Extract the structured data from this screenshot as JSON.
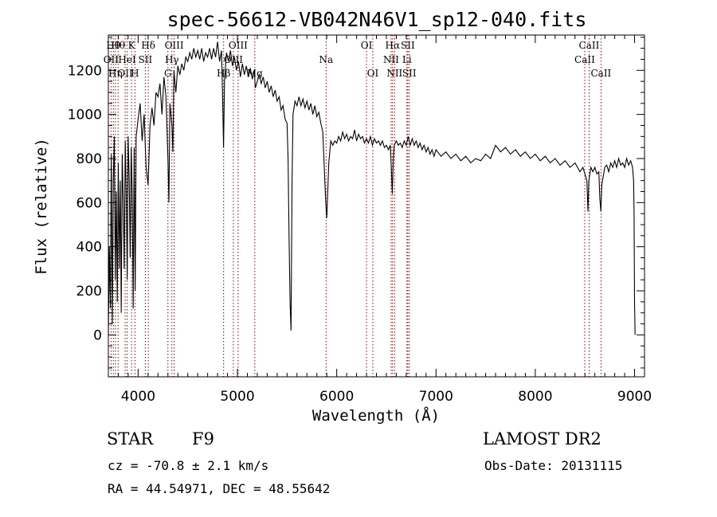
{
  "chart_data": {
    "type": "line",
    "title": "spec-56612-VB042N46V1_sp12-040.fits",
    "xlabel": "Wavelength (Å)",
    "ylabel": "Flux (relative)",
    "xlim": [
      3700,
      9100
    ],
    "ylim": [
      -190,
      1360
    ],
    "xticks": [
      4000,
      5000,
      6000,
      7000,
      8000,
      9000
    ],
    "yticks": [
      0,
      200,
      400,
      600,
      800,
      1000,
      1200
    ],
    "grid": false,
    "series": [
      {
        "color": "#000000",
        "points": [
          [
            3700,
            0
          ],
          [
            3710,
            400
          ],
          [
            3720,
            120
          ],
          [
            3730,
            820
          ],
          [
            3740,
            50
          ],
          [
            3750,
            700
          ],
          [
            3760,
            900
          ],
          [
            3770,
            250
          ],
          [
            3780,
            650
          ],
          [
            3790,
            150
          ],
          [
            3800,
            780
          ],
          [
            3810,
            300
          ],
          [
            3820,
            700
          ],
          [
            3830,
            100
          ],
          [
            3840,
            820
          ],
          [
            3850,
            600
          ],
          [
            3860,
            300
          ],
          [
            3870,
            880
          ],
          [
            3880,
            650
          ],
          [
            3890,
            250
          ],
          [
            3900,
            900
          ],
          [
            3910,
            700
          ],
          [
            3920,
            350
          ],
          [
            3930,
            850
          ],
          [
            3940,
            650
          ],
          [
            3950,
            120
          ],
          [
            3960,
            850
          ],
          [
            3970,
            200
          ],
          [
            3980,
            900
          ],
          [
            4000,
            980
          ],
          [
            4020,
            1050
          ],
          [
            4040,
            880
          ],
          [
            4060,
            1000
          ],
          [
            4080,
            760
          ],
          [
            4100,
            680
          ],
          [
            4120,
            950
          ],
          [
            4140,
            1030
          ],
          [
            4160,
            950
          ],
          [
            4180,
            1100
          ],
          [
            4200,
            1080
          ],
          [
            4220,
            1140
          ],
          [
            4240,
            1000
          ],
          [
            4260,
            1170
          ],
          [
            4280,
            1080
          ],
          [
            4300,
            800
          ],
          [
            4310,
            600
          ],
          [
            4320,
            1050
          ],
          [
            4340,
            950
          ],
          [
            4350,
            830
          ],
          [
            4360,
            1200
          ],
          [
            4380,
            1100
          ],
          [
            4400,
            1220
          ],
          [
            4420,
            1180
          ],
          [
            4440,
            1230
          ],
          [
            4460,
            1200
          ],
          [
            4480,
            1260
          ],
          [
            4500,
            1240
          ],
          [
            4520,
            1280
          ],
          [
            4540,
            1250
          ],
          [
            4560,
            1300
          ],
          [
            4580,
            1260
          ],
          [
            4600,
            1290
          ],
          [
            4620,
            1250
          ],
          [
            4640,
            1300
          ],
          [
            4660,
            1240
          ],
          [
            4680,
            1280
          ],
          [
            4700,
            1260
          ],
          [
            4720,
            1300
          ],
          [
            4740,
            1250
          ],
          [
            4760,
            1300
          ],
          [
            4780,
            1260
          ],
          [
            4800,
            1330
          ],
          [
            4820,
            1240
          ],
          [
            4840,
            1290
          ],
          [
            4850,
            1100
          ],
          [
            4860,
            850
          ],
          [
            4870,
            1150
          ],
          [
            4890,
            1280
          ],
          [
            4910,
            1240
          ],
          [
            4930,
            1290
          ],
          [
            4950,
            1220
          ],
          [
            4970,
            1260
          ],
          [
            4990,
            1200
          ],
          [
            5010,
            1240
          ],
          [
            5030,
            1170
          ],
          [
            5050,
            1230
          ],
          [
            5070,
            1180
          ],
          [
            5090,
            1220
          ],
          [
            5110,
            1170
          ],
          [
            5130,
            1210
          ],
          [
            5150,
            1160
          ],
          [
            5170,
            1200
          ],
          [
            5180,
            1120
          ],
          [
            5200,
            1150
          ],
          [
            5220,
            1180
          ],
          [
            5240,
            1140
          ],
          [
            5260,
            1170
          ],
          [
            5280,
            1120
          ],
          [
            5300,
            1150
          ],
          [
            5320,
            1100
          ],
          [
            5340,
            1130
          ],
          [
            5360,
            1080
          ],
          [
            5380,
            1110
          ],
          [
            5400,
            1060
          ],
          [
            5420,
            1080
          ],
          [
            5440,
            1020
          ],
          [
            5460,
            1040
          ],
          [
            5480,
            980
          ],
          [
            5500,
            960
          ],
          [
            5510,
            800
          ],
          [
            5520,
            450
          ],
          [
            5530,
            150
          ],
          [
            5540,
            20
          ],
          [
            5550,
            700
          ],
          [
            5560,
            1000
          ],
          [
            5580,
            1060
          ],
          [
            5600,
            1040
          ],
          [
            5620,
            1080
          ],
          [
            5640,
            1040
          ],
          [
            5660,
            1070
          ],
          [
            5680,
            1030
          ],
          [
            5700,
            1060
          ],
          [
            5720,
            1020
          ],
          [
            5740,
            1050
          ],
          [
            5760,
            1000
          ],
          [
            5780,
            1040
          ],
          [
            5800,
            990
          ],
          [
            5820,
            1010
          ],
          [
            5840,
            960
          ],
          [
            5860,
            920
          ],
          [
            5880,
            700
          ],
          [
            5890,
            600
          ],
          [
            5900,
            530
          ],
          [
            5910,
            650
          ],
          [
            5920,
            780
          ],
          [
            5940,
            880
          ],
          [
            5960,
            860
          ],
          [
            5980,
            880
          ],
          [
            6000,
            870
          ],
          [
            6020,
            900
          ],
          [
            6040,
            880
          ],
          [
            6060,
            920
          ],
          [
            6080,
            890
          ],
          [
            6100,
            910
          ],
          [
            6120,
            880
          ],
          [
            6140,
            900
          ],
          [
            6160,
            890
          ],
          [
            6180,
            930
          ],
          [
            6200,
            880
          ],
          [
            6220,
            910
          ],
          [
            6240,
            890
          ],
          [
            6260,
            900
          ],
          [
            6280,
            870
          ],
          [
            6300,
            890
          ],
          [
            6320,
            870
          ],
          [
            6340,
            900
          ],
          [
            6360,
            860
          ],
          [
            6380,
            890
          ],
          [
            6400,
            870
          ],
          [
            6420,
            880
          ],
          [
            6440,
            860
          ],
          [
            6460,
            880
          ],
          [
            6480,
            850
          ],
          [
            6500,
            860
          ],
          [
            6520,
            840
          ],
          [
            6540,
            860
          ],
          [
            6550,
            760
          ],
          [
            6560,
            640
          ],
          [
            6570,
            800
          ],
          [
            6580,
            860
          ],
          [
            6600,
            880
          ],
          [
            6620,
            860
          ],
          [
            6640,
            870
          ],
          [
            6660,
            850
          ],
          [
            6680,
            880
          ],
          [
            6700,
            860
          ],
          [
            6720,
            900
          ],
          [
            6740,
            860
          ],
          [
            6760,
            890
          ],
          [
            6780,
            860
          ],
          [
            6800,
            880
          ],
          [
            6820,
            850
          ],
          [
            6840,
            870
          ],
          [
            6860,
            840
          ],
          [
            6880,
            860
          ],
          [
            6900,
            830
          ],
          [
            6920,
            850
          ],
          [
            6940,
            820
          ],
          [
            6960,
            840
          ],
          [
            6980,
            810
          ],
          [
            7000,
            840
          ],
          [
            7050,
            810
          ],
          [
            7100,
            830
          ],
          [
            7150,
            800
          ],
          [
            7200,
            820
          ],
          [
            7250,
            790
          ],
          [
            7300,
            810
          ],
          [
            7350,
            780
          ],
          [
            7400,
            800
          ],
          [
            7450,
            790
          ],
          [
            7500,
            820
          ],
          [
            7550,
            800
          ],
          [
            7600,
            860
          ],
          [
            7650,
            830
          ],
          [
            7700,
            850
          ],
          [
            7750,
            820
          ],
          [
            7800,
            840
          ],
          [
            7850,
            810
          ],
          [
            7900,
            830
          ],
          [
            7950,
            800
          ],
          [
            8000,
            820
          ],
          [
            8050,
            790
          ],
          [
            8100,
            810
          ],
          [
            8150,
            780
          ],
          [
            8200,
            800
          ],
          [
            8250,
            770
          ],
          [
            8300,
            790
          ],
          [
            8350,
            760
          ],
          [
            8400,
            780
          ],
          [
            8450,
            740
          ],
          [
            8480,
            760
          ],
          [
            8500,
            730
          ],
          [
            8520,
            700
          ],
          [
            8530,
            560
          ],
          [
            8540,
            700
          ],
          [
            8560,
            760
          ],
          [
            8580,
            740
          ],
          [
            8600,
            760
          ],
          [
            8620,
            730
          ],
          [
            8640,
            740
          ],
          [
            8650,
            620
          ],
          [
            8660,
            560
          ],
          [
            8670,
            680
          ],
          [
            8700,
            760
          ],
          [
            8720,
            770
          ],
          [
            8740,
            740
          ],
          [
            8760,
            780
          ],
          [
            8780,
            760
          ],
          [
            8800,
            790
          ],
          [
            8820,
            760
          ],
          [
            8840,
            800
          ],
          [
            8860,
            770
          ],
          [
            8880,
            780
          ],
          [
            8900,
            760
          ],
          [
            8920,
            800
          ],
          [
            8940,
            770
          ],
          [
            8960,
            790
          ],
          [
            8980,
            760
          ],
          [
            8990,
            700
          ],
          [
            8995,
            550
          ],
          [
            9000,
            150
          ],
          [
            9005,
            0
          ]
        ]
      }
    ],
    "lines": [
      {
        "x": 3727,
        "label": "OII",
        "row": 2
      },
      {
        "x": 3750,
        "label": "Hθ",
        "row": 1
      },
      {
        "x": 3771,
        "label": "Hη",
        "row": 3
      },
      {
        "x": 3798,
        "label": "Hθ",
        "row": 1
      },
      {
        "x": 3869,
        "label": "OII",
        "row": 3
      },
      {
        "x": 3889,
        "label": "HeI",
        "row": 2
      },
      {
        "x": 3934,
        "label": "K",
        "row": 1
      },
      {
        "x": 3968,
        "label": "H",
        "row": 3
      },
      {
        "x": 4072,
        "label": "SII",
        "row": 2
      },
      {
        "x": 4102,
        "label": "Hδ",
        "row": 1
      },
      {
        "x": 4300,
        "label": "G",
        "row": 3
      },
      {
        "x": 4340,
        "label": "Hγ",
        "row": 2
      },
      {
        "x": 4363,
        "label": "OIII",
        "row": 1
      },
      {
        "x": 4861,
        "label": "Hβ",
        "row": 3
      },
      {
        "x": 4959,
        "label": "OIII",
        "row": 2
      },
      {
        "x": 5007,
        "label": "OIII",
        "row": 1
      },
      {
        "x": 5175,
        "label": "Mg",
        "row": 3
      },
      {
        "x": 5893,
        "label": "Na",
        "row": 2
      },
      {
        "x": 6300,
        "label": "OI",
        "row": 1
      },
      {
        "x": 6364,
        "label": "OI",
        "row": 3
      },
      {
        "x": 6548,
        "label": "NII",
        "row": 2
      },
      {
        "x": 6563,
        "label": "Hα",
        "row": 1
      },
      {
        "x": 6583,
        "label": "NII",
        "row": 3
      },
      {
        "x": 6707,
        "label": "Li",
        "row": 2
      },
      {
        "x": 6716,
        "label": "SII",
        "row": 1
      },
      {
        "x": 6731,
        "label": "SII",
        "row": 3
      },
      {
        "x": 8498,
        "label": "CaII",
        "row": 2
      },
      {
        "x": 8542,
        "label": "CaII",
        "row": 1
      },
      {
        "x": 8662,
        "label": "CaII",
        "row": 3
      }
    ]
  },
  "footer": {
    "class_label": "STAR",
    "subclass": "F9",
    "cz": "cz = -70.8 ± 2.1 km/s",
    "radec": "RA =  44.54971, DEC =  48.55642",
    "survey": "LAMOST DR2",
    "obs_date": "Obs-Date: 20131115"
  }
}
